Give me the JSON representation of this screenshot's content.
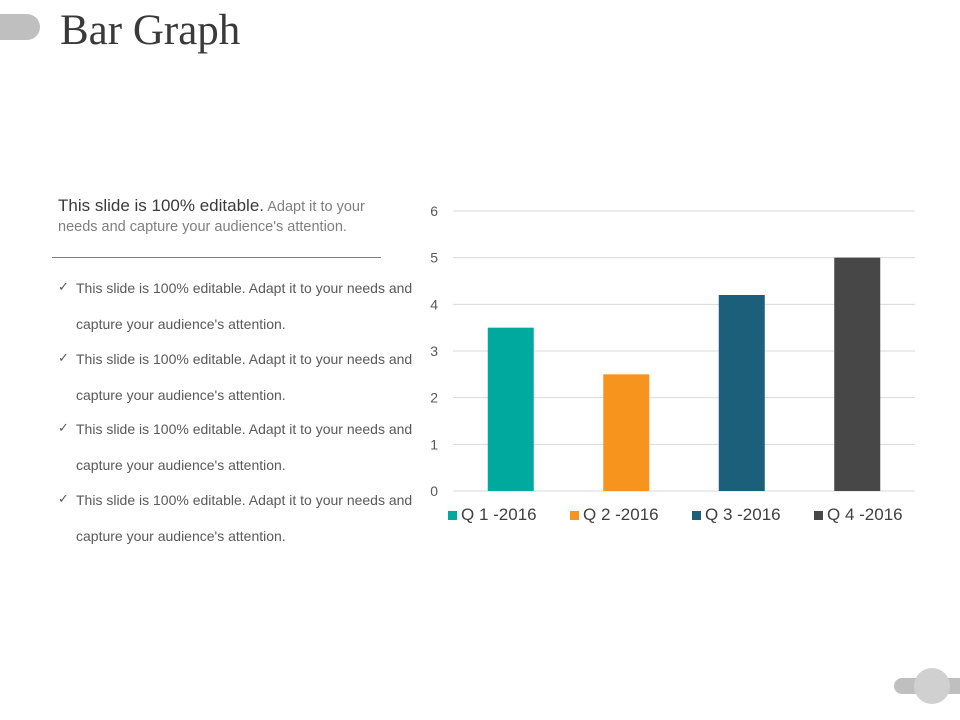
{
  "slide": {
    "title": "Bar Graph"
  },
  "intro": {
    "strong": "This slide is 100% editable.",
    "rest": " Adapt it to your needs and capture your audience's attention."
  },
  "bullets": [
    "This slide is 100% editable. Adapt it to your needs and capture your audience's attention.",
    "This slide is 100% editable. Adapt it to your needs and capture your audience's attention.",
    "This slide is 100% editable. Adapt it to your needs and capture your audience's attention.",
    "This slide is 100% editable. Adapt it to your needs and capture your audience's attention."
  ],
  "icons": {
    "bullet": "checkmark-icon"
  },
  "chart_data": {
    "type": "bar",
    "title": "",
    "xlabel": "",
    "ylabel": "",
    "ylim": [
      0,
      6
    ],
    "yticks": [
      0,
      1,
      2,
      3,
      4,
      5,
      6
    ],
    "grid": true,
    "legend_position": "bottom",
    "series": [
      {
        "name": "Q 1 -2016",
        "value": 3.5,
        "color": "#00a99d"
      },
      {
        "name": "Q 2 -2016",
        "value": 2.5,
        "color": "#f7941d"
      },
      {
        "name": "Q 3 -2016",
        "value": 4.2,
        "color": "#1b5f7a"
      },
      {
        "name": "Q 4 -2016",
        "value": 5.0,
        "color": "#474747"
      }
    ]
  }
}
